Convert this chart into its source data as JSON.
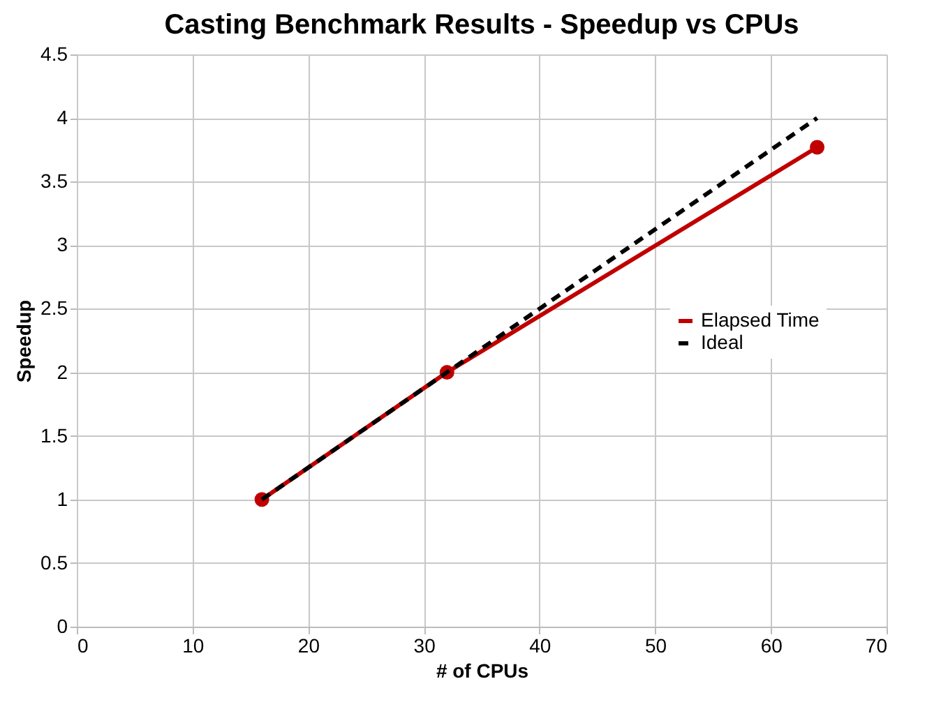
{
  "chart_data": {
    "type": "line",
    "title": "Casting Benchmark Results - Speedup vs CPUs",
    "xlabel": "# of CPUs",
    "ylabel": "Speedup",
    "x": [
      16,
      32,
      64
    ],
    "series": [
      {
        "name": "Elapsed Time",
        "color": "#c00000",
        "values": [
          1,
          2,
          3.77
        ],
        "marker": "circle",
        "line_style": "solid"
      },
      {
        "name": "Ideal",
        "color": "#000000",
        "values": [
          1,
          2,
          4
        ],
        "marker": "none",
        "line_style": "dashed"
      }
    ],
    "xlim": [
      0,
      70
    ],
    "xticks": [
      0,
      10,
      20,
      30,
      40,
      50,
      60,
      70
    ],
    "ylim": [
      0,
      4.5
    ],
    "yticks": [
      0,
      0.5,
      1,
      1.5,
      2,
      2.5,
      3,
      3.5,
      4,
      4.5
    ],
    "grid": true,
    "legend": "right"
  }
}
